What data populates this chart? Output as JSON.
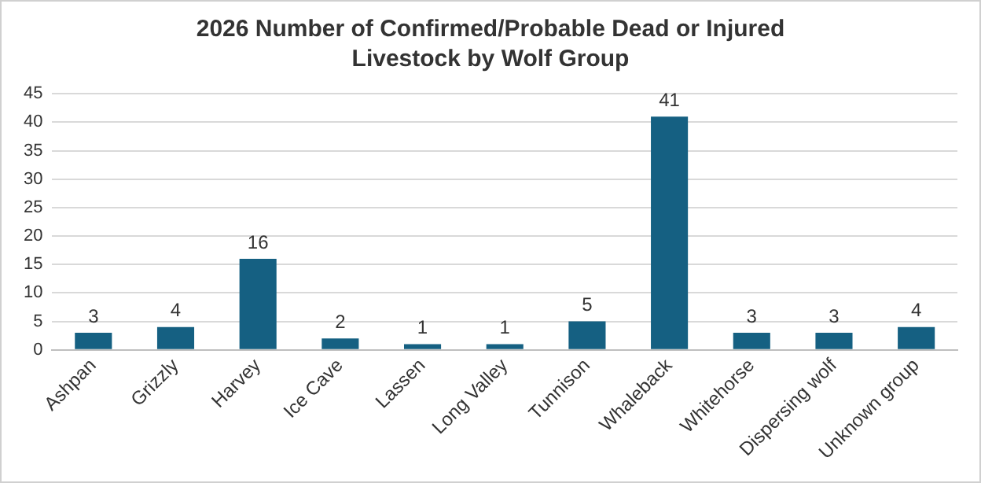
{
  "chart_data": {
    "type": "bar",
    "title": "2026 Number of Confirmed/Probable Dead or Injured Livestock by Wolf Group",
    "categories": [
      "Ashpan",
      "Grizzly",
      "Harvey",
      "Ice Cave",
      "Lassen",
      "Long Valley",
      "Tunnison",
      "Whaleback",
      "Whitehorse",
      "Dispersing wolf",
      "Unknown group"
    ],
    "values": [
      3,
      4,
      16,
      2,
      1,
      1,
      5,
      41,
      3,
      3,
      4
    ],
    "color": "#156082",
    "ylim": [
      0,
      45
    ],
    "yticks": [
      0,
      5,
      10,
      15,
      20,
      25,
      30,
      35,
      40,
      45
    ],
    "grid": "y",
    "data_labels": true,
    "legend": false
  }
}
